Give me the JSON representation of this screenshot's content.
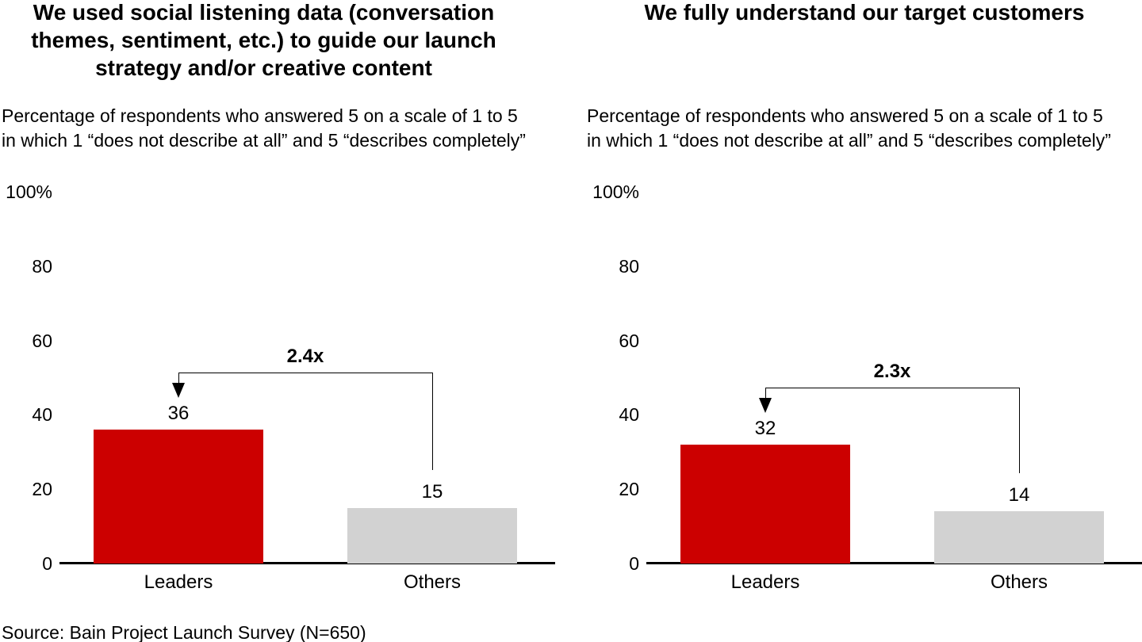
{
  "source": "Source: Bain Project Launch Survey (N=650)",
  "colors": {
    "leaders_bar": "#cc0000",
    "others_bar": "#d2d2d2",
    "axis": "#000000",
    "text": "#000000",
    "background": "#ffffff"
  },
  "chart_data": [
    {
      "type": "bar",
      "title": "We used social listening data (conversation themes, sentiment, etc.) to guide our launch strategy and/or creative content",
      "title_lines": [
        "We used social listening data (conversation",
        "themes, sentiment, etc.) to guide our launch",
        "strategy and/or creative content"
      ],
      "subtitle_lines": [
        "Percentage of respondents who answered 5 on a scale of 1 to 5",
        "in which 1 “does not describe at all” and 5 “describes completely”"
      ],
      "categories": [
        "Leaders",
        "Others"
      ],
      "values": [
        36,
        15
      ],
      "bar_colors": [
        "#cc0000",
        "#d2d2d2"
      ],
      "multiplier_label": "2.4x",
      "xlabel": "",
      "ylabel": "",
      "ylim": [
        0,
        100
      ],
      "y_ticks": [
        100,
        80,
        60,
        40,
        20,
        0
      ],
      "y_tick_labels": [
        "100%",
        "80",
        "60",
        "40",
        "20",
        "0"
      ],
      "grid": false,
      "legend": false
    },
    {
      "type": "bar",
      "title": "We fully understand our target customers",
      "title_lines": [
        "We fully understand our target customers"
      ],
      "subtitle_lines": [
        "Percentage of respondents who answered 5 on a scale of 1 to 5",
        "in which 1 “does not describe at all” and 5 “describes completely”"
      ],
      "categories": [
        "Leaders",
        "Others"
      ],
      "values": [
        32,
        14
      ],
      "bar_colors": [
        "#cc0000",
        "#d2d2d2"
      ],
      "multiplier_label": "2.3x",
      "xlabel": "",
      "ylabel": "",
      "ylim": [
        0,
        100
      ],
      "y_ticks": [
        100,
        80,
        60,
        40,
        20,
        0
      ],
      "y_tick_labels": [
        "100%",
        "80",
        "60",
        "40",
        "20",
        "0"
      ],
      "grid": false,
      "legend": false
    }
  ]
}
